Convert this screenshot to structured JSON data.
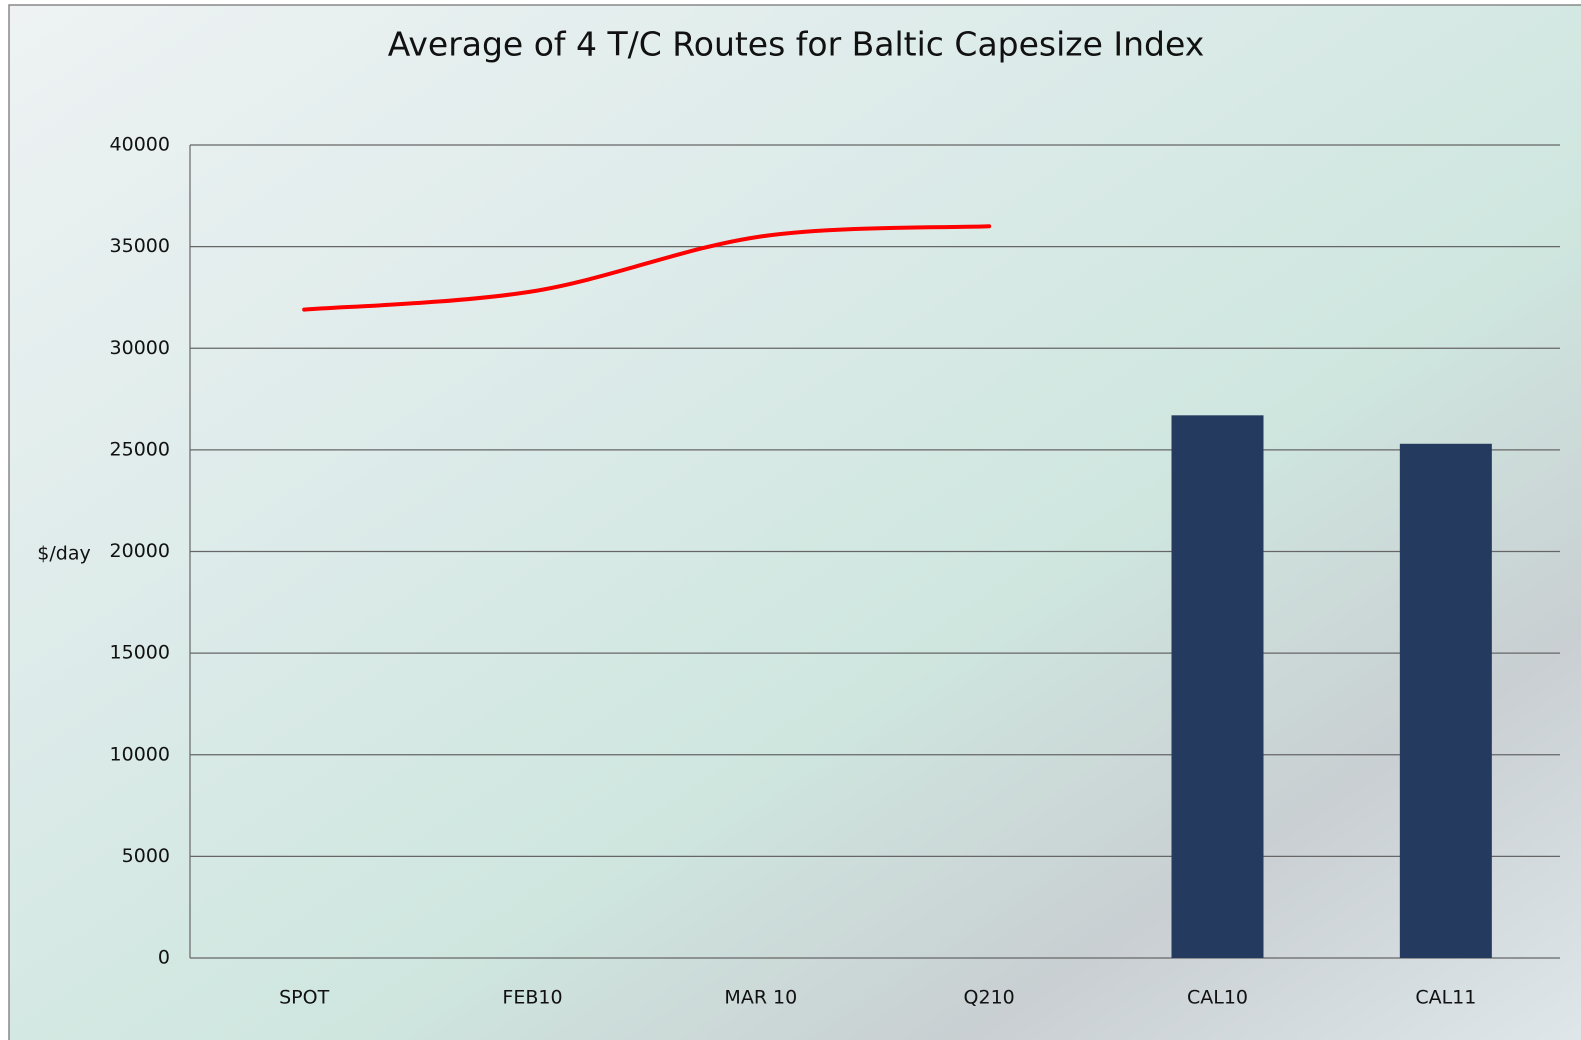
{
  "chart_data": {
    "type": "combo",
    "title": "Average of 4 T/C Routes for Baltic Capesize Index",
    "y_label": "$/day",
    "categories": [
      "SPOT",
      "FEB10",
      "MAR 10",
      "Q210",
      "CAL10",
      "CAL11"
    ],
    "series": [
      {
        "type": "line",
        "color": "#ff0000",
        "values": [
          31900,
          32800,
          35500,
          36000,
          null,
          null
        ]
      },
      {
        "type": "bar",
        "color": "#243a5e",
        "values": [
          null,
          null,
          null,
          null,
          26700,
          25300
        ]
      }
    ],
    "ylim": [
      0,
      40000
    ],
    "yticks": [
      0,
      5000,
      10000,
      15000,
      20000,
      25000,
      30000,
      35000,
      40000
    ],
    "grid": true
  }
}
